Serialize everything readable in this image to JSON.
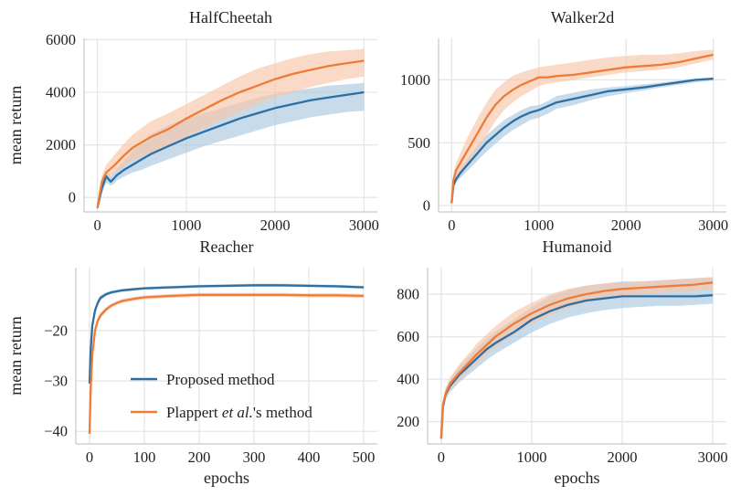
{
  "colors": {
    "proposed": "#2e6fa3",
    "plappert": "#ef7c36",
    "proposed_band": "#a9c7df",
    "plappert_band": "#f7c6a8",
    "grid": "#e6e6e6"
  },
  "legend": {
    "placement": "lower-right",
    "proposed": "Proposed method",
    "plappert_pre": "Plappert ",
    "plappert_italic": "et al.",
    "plappert_post": "'s method"
  },
  "chart_data": [
    {
      "type": "line",
      "title": "HalfCheetah",
      "xlabel": "",
      "ylabel": "mean return",
      "xlim": [
        -150,
        3150
      ],
      "ylim": [
        -550,
        6050
      ],
      "xticks": [
        0,
        1000,
        2000,
        3000
      ],
      "yticks": [
        0,
        2000,
        4000,
        6000
      ],
      "series": [
        {
          "key": "proposed",
          "x": [
            0,
            50,
            100,
            150,
            180,
            220,
            300,
            400,
            500,
            600,
            800,
            1000,
            1200,
            1400,
            1600,
            1800,
            2000,
            2200,
            2400,
            2600,
            2800,
            3000
          ],
          "y": [
            -400,
            350,
            800,
            600,
            700,
            850,
            1050,
            1250,
            1450,
            1650,
            1950,
            2250,
            2500,
            2750,
            3000,
            3200,
            3400,
            3550,
            3700,
            3800,
            3900,
            4000
          ],
          "lower": [
            -450,
            150,
            550,
            450,
            500,
            650,
            800,
            950,
            1050,
            1200,
            1450,
            1700,
            1950,
            2150,
            2350,
            2550,
            2750,
            2900,
            3050,
            3150,
            3250,
            3300
          ],
          "upper": [
            -350,
            550,
            1050,
            800,
            950,
            1100,
            1400,
            1800,
            2100,
            2400,
            2750,
            3000,
            3200,
            3400,
            3600,
            3800,
            3950,
            4050,
            4150,
            4250,
            4300,
            4350
          ]
        },
        {
          "key": "plappert",
          "x": [
            0,
            50,
            100,
            200,
            300,
            400,
            500,
            600,
            800,
            1000,
            1200,
            1400,
            1600,
            1800,
            2000,
            2200,
            2400,
            2600,
            2800,
            3000
          ],
          "y": [
            -400,
            600,
            950,
            1250,
            1600,
            1900,
            2100,
            2300,
            2600,
            3000,
            3350,
            3700,
            4000,
            4250,
            4500,
            4700,
            4850,
            5000,
            5100,
            5200
          ],
          "lower": [
            -450,
            400,
            700,
            950,
            1200,
            1400,
            1550,
            1700,
            1950,
            2300,
            2650,
            2950,
            3250,
            3550,
            3800,
            4000,
            4200,
            4350,
            4500,
            4600
          ],
          "upper": [
            -350,
            850,
            1250,
            1650,
            2050,
            2400,
            2650,
            2900,
            3200,
            3550,
            3900,
            4250,
            4600,
            4900,
            5100,
            5300,
            5450,
            5550,
            5600,
            5650
          ]
        }
      ]
    },
    {
      "type": "line",
      "title": "Walker2d",
      "xlabel": "",
      "ylabel": "",
      "xlim": [
        -150,
        3150
      ],
      "ylim": [
        -50,
        1330
      ],
      "xticks": [
        0,
        1000,
        2000,
        3000
      ],
      "yticks": [
        0,
        500,
        1000
      ],
      "series": [
        {
          "key": "proposed",
          "x": [
            0,
            20,
            50,
            100,
            200,
            300,
            400,
            500,
            600,
            700,
            800,
            900,
            1000,
            1100,
            1200,
            1400,
            1600,
            1800,
            2000,
            2200,
            2400,
            2600,
            2800,
            3000
          ],
          "y": [
            20,
            160,
            210,
            260,
            340,
            420,
            500,
            560,
            620,
            670,
            710,
            740,
            760,
            790,
            820,
            850,
            880,
            910,
            925,
            940,
            960,
            980,
            1000,
            1010
          ],
          "lower": [
            10,
            130,
            180,
            220,
            290,
            360,
            430,
            490,
            550,
            600,
            640,
            680,
            700,
            730,
            770,
            800,
            840,
            870,
            895,
            915,
            940,
            960,
            980,
            995
          ],
          "upper": [
            30,
            190,
            240,
            300,
            390,
            480,
            560,
            620,
            680,
            720,
            760,
            790,
            800,
            830,
            870,
            900,
            925,
            940,
            950,
            965,
            980,
            995,
            1010,
            1020
          ]
        },
        {
          "key": "plappert",
          "x": [
            0,
            20,
            50,
            100,
            200,
            300,
            400,
            500,
            600,
            700,
            800,
            900,
            1000,
            1100,
            1200,
            1400,
            1600,
            1800,
            2000,
            2200,
            2400,
            2600,
            2800,
            3000
          ],
          "y": [
            20,
            200,
            280,
            340,
            460,
            580,
            700,
            800,
            870,
            920,
            960,
            990,
            1020,
            1020,
            1030,
            1040,
            1060,
            1080,
            1100,
            1110,
            1120,
            1140,
            1170,
            1200
          ],
          "lower": [
            10,
            150,
            220,
            270,
            360,
            450,
            560,
            670,
            760,
            820,
            870,
            910,
            950,
            970,
            980,
            1000,
            1020,
            1040,
            1060,
            1070,
            1080,
            1100,
            1130,
            1160
          ],
          "upper": [
            30,
            250,
            340,
            420,
            570,
            700,
            820,
            920,
            980,
            1030,
            1060,
            1080,
            1100,
            1110,
            1120,
            1140,
            1160,
            1180,
            1190,
            1200,
            1200,
            1210,
            1230,
            1240
          ]
        }
      ]
    },
    {
      "type": "line",
      "title": "Reacher",
      "xlabel": "epochs",
      "ylabel": "mean return",
      "xlim": [
        -25,
        525
      ],
      "ylim": [
        -42.5,
        -7.5
      ],
      "xticks": [
        0,
        100,
        200,
        300,
        400,
        500
      ],
      "yticks": [
        -40,
        -30,
        -20
      ],
      "series": [
        {
          "key": "proposed",
          "x": [
            0,
            2,
            5,
            10,
            15,
            20,
            30,
            40,
            50,
            60,
            80,
            100,
            150,
            200,
            250,
            300,
            350,
            400,
            450,
            500
          ],
          "y": [
            -30.5,
            -24,
            -19,
            -16,
            -14.5,
            -13.5,
            -12.8,
            -12.4,
            -12.2,
            -12.0,
            -11.8,
            -11.6,
            -11.4,
            -11.2,
            -11.1,
            -11.0,
            -11.0,
            -11.1,
            -11.2,
            -11.4
          ],
          "lower": [
            -31.5,
            -25,
            -20,
            -16.8,
            -15.1,
            -14.0,
            -13.2,
            -12.7,
            -12.5,
            -12.3,
            -12.1,
            -11.9,
            -11.7,
            -11.5,
            -11.4,
            -11.3,
            -11.3,
            -11.4,
            -11.5,
            -11.7
          ],
          "upper": [
            -29.5,
            -23,
            -18,
            -15.2,
            -13.9,
            -13.0,
            -12.4,
            -12.1,
            -11.9,
            -11.7,
            -11.5,
            -11.3,
            -11.1,
            -10.9,
            -10.8,
            -10.7,
            -10.7,
            -10.8,
            -10.9,
            -11.1
          ]
        },
        {
          "key": "plappert",
          "x": [
            0,
            2,
            5,
            10,
            15,
            20,
            30,
            40,
            50,
            60,
            80,
            100,
            150,
            200,
            250,
            300,
            350,
            400,
            450,
            500
          ],
          "y": [
            -40.5,
            -32,
            -25,
            -20,
            -18,
            -17,
            -15.8,
            -15.0,
            -14.5,
            -14.1,
            -13.7,
            -13.4,
            -13.1,
            -12.9,
            -12.9,
            -12.9,
            -12.9,
            -13.0,
            -13.0,
            -13.1
          ],
          "lower": [
            -41.5,
            -33,
            -26,
            -20.8,
            -18.7,
            -17.6,
            -16.3,
            -15.4,
            -14.9,
            -14.5,
            -14.1,
            -13.8,
            -13.5,
            -13.3,
            -13.3,
            -13.3,
            -13.3,
            -13.4,
            -13.4,
            -13.5
          ],
          "upper": [
            -39.5,
            -31,
            -24,
            -19.2,
            -17.3,
            -16.4,
            -15.3,
            -14.6,
            -14.1,
            -13.7,
            -13.3,
            -13.0,
            -12.7,
            -12.5,
            -12.5,
            -12.5,
            -12.5,
            -12.6,
            -12.6,
            -12.7
          ]
        }
      ]
    },
    {
      "type": "line",
      "title": "Humanoid",
      "xlabel": "epochs",
      "ylabel": "",
      "xlim": [
        -150,
        3150
      ],
      "ylim": [
        95,
        925
      ],
      "xticks": [
        0,
        1000,
        2000,
        3000
      ],
      "yticks": [
        200,
        400,
        600,
        800
      ],
      "series": [
        {
          "key": "proposed",
          "x": [
            0,
            20,
            50,
            100,
            200,
            300,
            400,
            500,
            600,
            800,
            1000,
            1200,
            1400,
            1600,
            1800,
            2000,
            2200,
            2400,
            2600,
            2800,
            3000
          ],
          "y": [
            120,
            270,
            330,
            370,
            420,
            460,
            500,
            540,
            570,
            620,
            680,
            720,
            750,
            770,
            780,
            790,
            790,
            790,
            790,
            790,
            795
          ],
          "lower": [
            110,
            250,
            305,
            340,
            385,
            420,
            455,
            490,
            520,
            570,
            620,
            660,
            690,
            710,
            725,
            735,
            740,
            745,
            745,
            750,
            755
          ],
          "upper": [
            130,
            290,
            355,
            400,
            460,
            505,
            550,
            590,
            625,
            680,
            740,
            790,
            820,
            840,
            850,
            860,
            860,
            865,
            870,
            875,
            880
          ]
        },
        {
          "key": "plappert",
          "x": [
            0,
            20,
            50,
            100,
            200,
            300,
            400,
            500,
            600,
            800,
            1000,
            1200,
            1400,
            1600,
            1800,
            2000,
            2200,
            2400,
            2600,
            2800,
            3000
          ],
          "y": [
            120,
            280,
            335,
            380,
            430,
            475,
            520,
            560,
            600,
            660,
            710,
            750,
            780,
            800,
            815,
            825,
            830,
            835,
            840,
            845,
            855
          ],
          "lower": [
            110,
            260,
            310,
            350,
            395,
            435,
            475,
            515,
            550,
            610,
            660,
            700,
            735,
            760,
            780,
            795,
            800,
            805,
            810,
            815,
            820
          ],
          "upper": [
            130,
            300,
            360,
            410,
            470,
            520,
            570,
            610,
            650,
            715,
            760,
            800,
            825,
            840,
            850,
            855,
            860,
            865,
            870,
            875,
            880
          ]
        }
      ]
    }
  ]
}
